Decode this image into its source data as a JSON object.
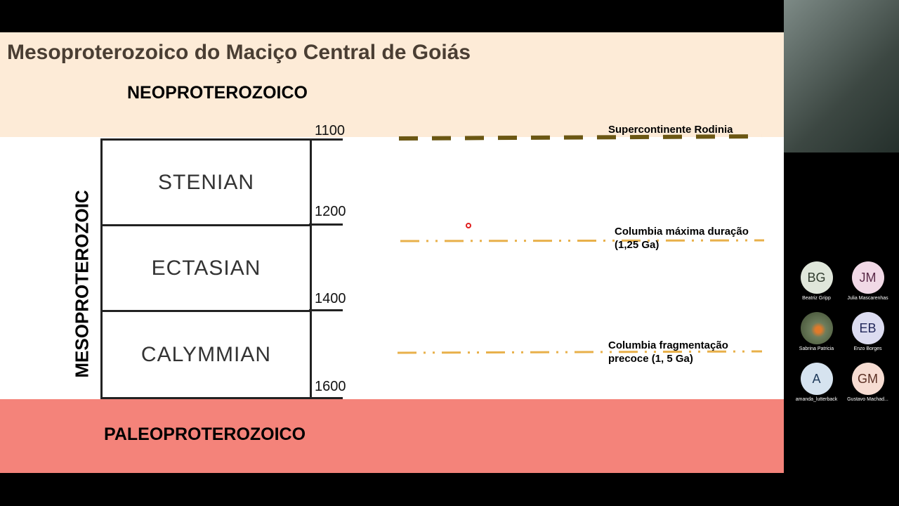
{
  "slide": {
    "title": "Mesoproterozoico do Maciço Central de Goiás",
    "neo": "NEOPROTEROZOICO",
    "paleo": "PALEOPROTEROZOICO",
    "era": "MESOPROTEROZOIC",
    "periods": [
      {
        "name": "STENIAN",
        "color": "#fddcb3"
      },
      {
        "name": "ECTASIAN",
        "color": "#fcd2a3"
      },
      {
        "name": "CALYMMIAN",
        "color": "#f9c792"
      }
    ],
    "ages": [
      "1100",
      "1200",
      "1400",
      "1600"
    ],
    "events": [
      {
        "line1": "Supercontinente Rodinia",
        "line2": "",
        "color": "#6b5713",
        "style": "dashed"
      },
      {
        "line1": "Columbia máxima duração",
        "line2": "(1,25 Ga)",
        "color": "#e8b04a",
        "style": "dash-dot-dot"
      },
      {
        "line1": "Columbia fragmentação",
        "line2": "precoce (1, 5 Ga)",
        "color": "#e8b04a",
        "style": "dash-dot-dot"
      }
    ]
  },
  "participants": [
    {
      "initials": "BG",
      "name": "Beatriz Gripp",
      "bg": "#dfe6da",
      "fg": "#2f3a2d"
    },
    {
      "initials": "JM",
      "name": "Julia Mascarenhas",
      "bg": "#f1d9e6",
      "fg": "#5a2a48"
    },
    {
      "initials": "",
      "name": "Sabrina Patricia",
      "bg": "#5c6d4e",
      "fg": "#fff"
    },
    {
      "initials": "EB",
      "name": "Enzo Borges",
      "bg": "#dcdcf0",
      "fg": "#22285a"
    },
    {
      "initials": "A",
      "name": "amanda_lutterback",
      "bg": "#d6e3ef",
      "fg": "#1f3a5a"
    },
    {
      "initials": "GM",
      "name": "Gustavo Machad...",
      "bg": "#f6dcd2",
      "fg": "#5a2e22"
    }
  ]
}
